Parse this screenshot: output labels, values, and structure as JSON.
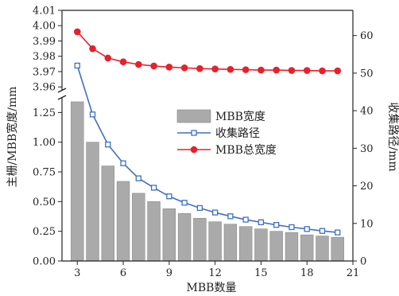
{
  "chart_data": {
    "type": "bar",
    "xlabel": "MBB数量",
    "ylabel_left": "主栅/MBB宽度/mm",
    "ylabel_right": "收集路径/mm",
    "x": [
      3,
      4,
      5,
      6,
      7,
      8,
      9,
      10,
      11,
      12,
      13,
      14,
      15,
      16,
      17,
      18,
      19,
      20
    ],
    "xlim": [
      2,
      21
    ],
    "xticks": [
      3,
      6,
      9,
      12,
      15,
      18,
      21
    ],
    "left_axis_lower": {
      "ylim": [
        0,
        1.4
      ],
      "ticks": [
        "0.00",
        "0.25",
        "0.50",
        "0.75",
        "1.00",
        "1.25"
      ]
    },
    "left_axis_upper": {
      "ylim": [
        3.957,
        4.01
      ],
      "ticks": [
        "3.96",
        "3.97",
        "3.98",
        "3.99",
        "4.00",
        "4.01"
      ]
    },
    "right_axis": {
      "ylim": [
        0,
        66.7
      ],
      "ticks": [
        "0",
        "10",
        "20",
        "30",
        "40",
        "50",
        "60"
      ]
    },
    "series": [
      {
        "name": "MBB宽度",
        "kind": "bar",
        "axis": "left",
        "color": "#aaaaaa",
        "values": [
          1.34,
          1.0,
          0.8,
          0.67,
          0.57,
          0.5,
          0.44,
          0.4,
          0.36,
          0.33,
          0.31,
          0.29,
          0.27,
          0.25,
          0.24,
          0.22,
          0.21,
          0.2
        ]
      },
      {
        "name": "收集路径",
        "kind": "line",
        "marker": "square-open",
        "axis": "right",
        "color": "#3f6fc4",
        "values": [
          52,
          39,
          31,
          26,
          22,
          19.5,
          17.2,
          15.5,
          14.1,
          12.9,
          11.9,
          11.0,
          10.3,
          9.6,
          9.0,
          8.5,
          8.0,
          7.6
        ]
      },
      {
        "name": "MBB总宽度",
        "kind": "line",
        "marker": "circle-filled",
        "axis": "right",
        "color": "#e8202a",
        "values": [
          61,
          56.5,
          54,
          53,
          52.3,
          51.9,
          51.6,
          51.4,
          51.2,
          51.1,
          51.0,
          50.9,
          50.8,
          50.8,
          50.7,
          50.7,
          50.6,
          50.6
        ]
      }
    ],
    "legend": "upper-right-inside",
    "grid": false
  }
}
